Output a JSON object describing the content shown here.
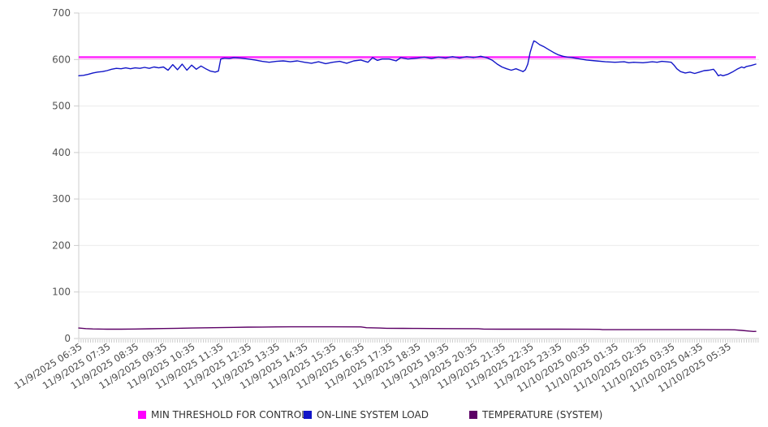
{
  "chart_data": {
    "type": "line",
    "title": "",
    "xlabel": "",
    "ylabel": "",
    "ylim": [
      0,
      700
    ],
    "y_ticks": [
      0,
      100,
      200,
      300,
      400,
      500,
      600,
      700
    ],
    "x_total_minutes": 1440,
    "x_label_interval_minutes": 60,
    "grid": "horizontal",
    "legend_position": "bottom",
    "x_labels": [
      "11/9/2025 06:35",
      "11/9/2025 07:35",
      "11/9/2025 08:35",
      "11/9/2025 09:35",
      "11/9/2025 10:35",
      "11/9/2025 11:35",
      "11/9/2025 12:35",
      "11/9/2025 13:35",
      "11/9/2025 14:35",
      "11/9/2025 15:35",
      "11/9/2025 16:35",
      "11/9/2025 17:35",
      "11/9/2025 18:35",
      "11/9/2025 19:35",
      "11/9/2025 20:35",
      "11/9/2025 21:35",
      "11/9/2025 22:35",
      "11/9/2025 23:35",
      "11/10/2025 00:35",
      "11/10/2025 01:35",
      "11/10/2025 02:35",
      "11/10/2025 03:35",
      "11/10/2025 04:35",
      "11/10/2025 05:35"
    ],
    "series": [
      {
        "name": "MIN THRESHOLD FOR CONTROL",
        "kind": "hline",
        "value": 605,
        "color": "#ff00ff",
        "halo": "#ffaff0"
      },
      {
        "name": "ON-LINE SYSTEM LOAD",
        "kind": "line",
        "color": "#1216c8",
        "points": [
          [
            0,
            565
          ],
          [
            10,
            566
          ],
          [
            20,
            568
          ],
          [
            30,
            571
          ],
          [
            40,
            573
          ],
          [
            50,
            574
          ],
          [
            60,
            576
          ],
          [
            70,
            579
          ],
          [
            80,
            581
          ],
          [
            90,
            580
          ],
          [
            100,
            582
          ],
          [
            110,
            580
          ],
          [
            120,
            582
          ],
          [
            130,
            581
          ],
          [
            140,
            583
          ],
          [
            150,
            581
          ],
          [
            160,
            584
          ],
          [
            170,
            582
          ],
          [
            180,
            584
          ],
          [
            190,
            577
          ],
          [
            200,
            589
          ],
          [
            210,
            578
          ],
          [
            220,
            590
          ],
          [
            230,
            577
          ],
          [
            240,
            588
          ],
          [
            250,
            579
          ],
          [
            260,
            586
          ],
          [
            270,
            580
          ],
          [
            280,
            575
          ],
          [
            290,
            573
          ],
          [
            297,
            575
          ],
          [
            302,
            601
          ],
          [
            310,
            603
          ],
          [
            320,
            602
          ],
          [
            330,
            604
          ],
          [
            345,
            603
          ],
          [
            360,
            601
          ],
          [
            375,
            599
          ],
          [
            390,
            596
          ],
          [
            405,
            594
          ],
          [
            420,
            596
          ],
          [
            435,
            597
          ],
          [
            450,
            595
          ],
          [
            465,
            597
          ],
          [
            480,
            594
          ],
          [
            495,
            592
          ],
          [
            510,
            595
          ],
          [
            525,
            591
          ],
          [
            540,
            594
          ],
          [
            555,
            596
          ],
          [
            570,
            592
          ],
          [
            585,
            597
          ],
          [
            600,
            599
          ],
          [
            615,
            594
          ],
          [
            625,
            604
          ],
          [
            635,
            598
          ],
          [
            645,
            601
          ],
          [
            660,
            601
          ],
          [
            675,
            597
          ],
          [
            685,
            604
          ],
          [
            700,
            601
          ],
          [
            720,
            603
          ],
          [
            735,
            605
          ],
          [
            750,
            602
          ],
          [
            765,
            605
          ],
          [
            780,
            603
          ],
          [
            795,
            606
          ],
          [
            810,
            603
          ],
          [
            825,
            606
          ],
          [
            840,
            604
          ],
          [
            855,
            607
          ],
          [
            870,
            603
          ],
          [
            880,
            598
          ],
          [
            890,
            590
          ],
          [
            900,
            584
          ],
          [
            910,
            580
          ],
          [
            920,
            577
          ],
          [
            930,
            580
          ],
          [
            940,
            576
          ],
          [
            945,
            574
          ],
          [
            950,
            578
          ],
          [
            955,
            590
          ],
          [
            960,
            615
          ],
          [
            965,
            632
          ],
          [
            968,
            640
          ],
          [
            972,
            638
          ],
          [
            980,
            632
          ],
          [
            990,
            627
          ],
          [
            1000,
            621
          ],
          [
            1010,
            615
          ],
          [
            1020,
            610
          ],
          [
            1030,
            607
          ],
          [
            1040,
            605
          ],
          [
            1050,
            604
          ],
          [
            1060,
            602
          ],
          [
            1080,
            599
          ],
          [
            1100,
            597
          ],
          [
            1120,
            595
          ],
          [
            1140,
            594
          ],
          [
            1160,
            595
          ],
          [
            1170,
            593
          ],
          [
            1180,
            594
          ],
          [
            1200,
            593
          ],
          [
            1220,
            595
          ],
          [
            1230,
            594
          ],
          [
            1240,
            596
          ],
          [
            1250,
            595
          ],
          [
            1260,
            594
          ],
          [
            1266,
            588
          ],
          [
            1272,
            580
          ],
          [
            1280,
            574
          ],
          [
            1290,
            571
          ],
          [
            1300,
            573
          ],
          [
            1310,
            570
          ],
          [
            1320,
            573
          ],
          [
            1330,
            576
          ],
          [
            1340,
            577
          ],
          [
            1350,
            579
          ],
          [
            1355,
            573
          ],
          [
            1360,
            565
          ],
          [
            1365,
            567
          ],
          [
            1370,
            565
          ],
          [
            1380,
            568
          ],
          [
            1390,
            573
          ],
          [
            1400,
            579
          ],
          [
            1410,
            584
          ],
          [
            1415,
            582
          ],
          [
            1420,
            585
          ],
          [
            1430,
            587
          ],
          [
            1440,
            590
          ]
        ]
      },
      {
        "name": "TEMPERATURE (SYSTEM)",
        "kind": "line",
        "color": "#5c0066",
        "points": [
          [
            0,
            22.5
          ],
          [
            15,
            21.3
          ],
          [
            30,
            20.6
          ],
          [
            60,
            20
          ],
          [
            90,
            20
          ],
          [
            120,
            20.4
          ],
          [
            150,
            21
          ],
          [
            180,
            21.5
          ],
          [
            210,
            22
          ],
          [
            240,
            22.5
          ],
          [
            270,
            23
          ],
          [
            300,
            23.4
          ],
          [
            330,
            23.9
          ],
          [
            360,
            24.4
          ],
          [
            390,
            24.7
          ],
          [
            420,
            25
          ],
          [
            450,
            25.1
          ],
          [
            480,
            25.2
          ],
          [
            540,
            25.2
          ],
          [
            600,
            25
          ],
          [
            612,
            23.2
          ],
          [
            640,
            22.5
          ],
          [
            655,
            22
          ],
          [
            690,
            21.8
          ],
          [
            720,
            21.6
          ],
          [
            780,
            21.3
          ],
          [
            850,
            21.2
          ],
          [
            862,
            20.3
          ],
          [
            900,
            20.1
          ],
          [
            960,
            20
          ],
          [
            1020,
            20
          ],
          [
            1080,
            19.9
          ],
          [
            1108,
            19.8
          ],
          [
            1114,
            19
          ],
          [
            1200,
            19
          ],
          [
            1320,
            19
          ],
          [
            1380,
            18.9
          ],
          [
            1395,
            18.6
          ],
          [
            1410,
            17.5
          ],
          [
            1425,
            16
          ],
          [
            1435,
            15.2
          ],
          [
            1440,
            15.3
          ]
        ]
      }
    ]
  }
}
